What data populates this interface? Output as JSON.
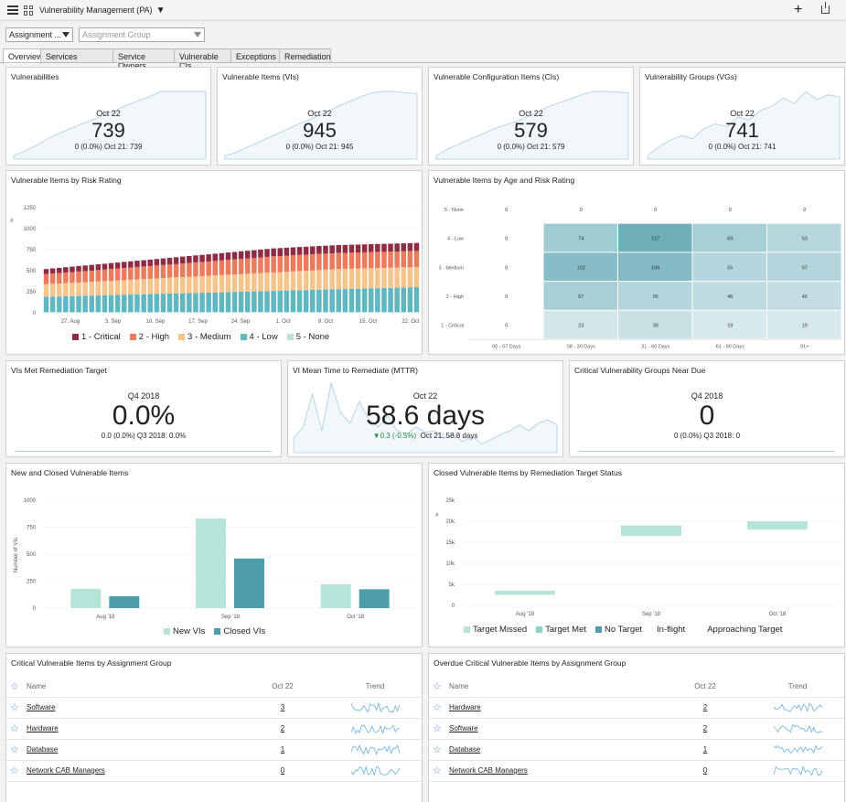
{
  "header": {
    "title": "Vulnerability Management (PA)"
  },
  "filters": {
    "assignment": "Assignment ...",
    "group_placeholder": "Assignment Group"
  },
  "tabs": [
    "Overview",
    "Services",
    "Service Owners",
    "Vulnerable CIs",
    "Exceptions",
    "Remediation"
  ],
  "kpis": [
    {
      "title": "Vulnerabilities",
      "date": "Oct 22",
      "value": "739",
      "sub": "0 (0.0%)  Oct 21: 739",
      "trend": [
        0.05,
        0.12,
        0.2,
        0.3,
        0.38,
        0.45,
        0.52,
        0.58,
        0.65,
        0.72,
        0.8,
        0.86,
        0.92,
        1,
        1,
        1,
        1,
        1
      ]
    },
    {
      "title": "Vulnerable Items (VIs)",
      "date": "Oct 22",
      "value": "945",
      "sub": "0 (0.0%)  Oct 21: 945",
      "trend": [
        0.05,
        0.1,
        0.18,
        0.25,
        0.33,
        0.4,
        0.48,
        0.55,
        0.62,
        0.7,
        0.78,
        0.85,
        0.92,
        0.98,
        1,
        1,
        0.98,
        0.97
      ]
    },
    {
      "title": "Vulnerable Configuration Items (CIs)",
      "date": "Oct 22",
      "value": "579",
      "sub": "0 (0.0%)  Oct 21: 579",
      "trend": [
        0.05,
        0.15,
        0.22,
        0.3,
        0.36,
        0.44,
        0.5,
        0.55,
        0.62,
        0.7,
        0.78,
        0.84,
        0.9,
        0.96,
        1,
        1,
        0.99,
        0.98
      ]
    },
    {
      "title": "Vulnerability Groups (VGs)",
      "date": "Oct 22",
      "value": "741",
      "sub": "0 (0.0%)  Oct 21: 741",
      "trend": [
        0.05,
        0.18,
        0.28,
        0.35,
        0.3,
        0.45,
        0.52,
        0.48,
        0.62,
        0.58,
        0.72,
        0.78,
        0.9,
        0.82,
        1,
        0.88,
        0.95,
        0.92
      ]
    }
  ],
  "risk_chart": {
    "title": "Vulnerable Items by Risk Rating",
    "yticks": [
      "1250",
      "1000",
      "750",
      "500",
      "250",
      "0"
    ],
    "xticks": [
      "27. Aug",
      "3. Sep",
      "10. Sep",
      "17. Sep",
      "24. Sep",
      "1. Oct",
      "8. Oct",
      "15. Oct",
      "22. Oct"
    ],
    "legend": [
      "1 - Critical",
      "2 - High",
      "3 - Medium",
      "4 - Low",
      "5 - None"
    ],
    "colors": {
      "critical": "#8e2b45",
      "high": "#ec7b5e",
      "medium": "#f6c48d",
      "low": "#5fb7c2",
      "none": "#b8e3de"
    }
  },
  "chart_data": [
    {
      "type": "bar",
      "title": "Vulnerable Items by Risk Rating",
      "ylim": [
        0,
        1250
      ],
      "series": [
        {
          "name": "1 - Critical",
          "values": [
            60,
            61,
            62,
            63,
            64,
            65,
            66,
            67,
            68,
            69,
            70,
            71,
            72,
            73,
            74,
            75,
            76,
            77,
            78,
            79,
            80,
            81,
            82,
            83,
            84,
            85,
            86,
            87,
            88,
            89,
            90,
            91,
            92,
            93,
            94,
            95,
            95,
            95,
            95,
            95,
            95,
            95,
            95,
            95,
            95,
            95,
            95,
            95,
            95,
            95,
            95,
            95,
            95,
            95,
            95,
            95,
            95,
            95
          ]
        },
        {
          "name": "2 - High",
          "values": [
            120,
            122,
            124,
            126,
            128,
            130,
            132,
            134,
            136,
            138,
            140,
            142,
            144,
            146,
            148,
            150,
            152,
            154,
            156,
            158,
            160,
            162,
            164,
            166,
            168,
            170,
            172,
            174,
            176,
            178,
            180,
            182,
            184,
            186,
            188,
            190,
            190,
            190,
            190,
            190,
            190,
            190,
            190,
            190,
            190,
            190,
            190,
            190,
            190,
            190,
            190,
            190,
            190,
            190,
            190,
            190,
            190,
            190
          ]
        },
        {
          "name": "3 - Medium",
          "values": [
            150,
            152,
            154,
            156,
            158,
            160,
            162,
            164,
            166,
            168,
            170,
            172,
            174,
            176,
            178,
            180,
            182,
            184,
            186,
            188,
            190,
            192,
            194,
            196,
            198,
            200,
            202,
            204,
            206,
            208,
            210,
            212,
            214,
            216,
            218,
            220,
            222,
            224,
            226,
            228,
            230,
            232,
            234,
            236,
            238,
            240,
            240,
            240,
            240,
            240,
            240,
            240,
            240,
            240,
            240,
            240,
            240,
            240
          ]
        },
        {
          "name": "4 - Low",
          "values": [
            180,
            182,
            184,
            186,
            188,
            190,
            192,
            194,
            196,
            198,
            200,
            202,
            204,
            206,
            208,
            210,
            212,
            214,
            216,
            218,
            220,
            222,
            224,
            226,
            228,
            230,
            232,
            234,
            236,
            238,
            240,
            242,
            244,
            246,
            248,
            250,
            252,
            254,
            256,
            258,
            260,
            262,
            264,
            266,
            268,
            270,
            272,
            274,
            276,
            278,
            280,
            282,
            284,
            286,
            288,
            290,
            292,
            294
          ]
        },
        {
          "name": "5 - None",
          "values": [
            10,
            10,
            10,
            10,
            10,
            10,
            10,
            10,
            10,
            10,
            10,
            10,
            10,
            10,
            10,
            10,
            10,
            10,
            10,
            10,
            10,
            10,
            10,
            10,
            10,
            10,
            10,
            10,
            10,
            10,
            10,
            10,
            10,
            10,
            10,
            10,
            10,
            10,
            10,
            10,
            10,
            10,
            10,
            10,
            10,
            10,
            10,
            10,
            10,
            10,
            10,
            10,
            10,
            10,
            10,
            10,
            10,
            10
          ]
        }
      ]
    },
    {
      "type": "heatmap",
      "title": "Vulnerable Items by Age and Risk Rating",
      "rows": [
        "5 - None",
        "4 - Low",
        "3 - Medium",
        "2 - High",
        "1 - Critical"
      ],
      "columns": [
        "00 - 07 Days",
        "08 - 30 Days",
        "31 - 60 Days",
        "61 - 90 Days",
        "91+"
      ],
      "values": [
        [
          0,
          0,
          0,
          0,
          0
        ],
        [
          0,
          74,
          127,
          69,
          53
        ],
        [
          0,
          102,
          106,
          55,
          57
        ],
        [
          0,
          67,
          55,
          46,
          40
        ],
        [
          0,
          23,
          33,
          19,
          19
        ]
      ]
    },
    {
      "type": "bar",
      "title": "New and Closed Vulnerable Items",
      "ylabel": "Number of VIs",
      "categories": [
        "Aug '18",
        "Sep '18",
        "Oct '18"
      ],
      "ylim": [
        0,
        1000
      ],
      "yticks": [
        "1000",
        "750",
        "500",
        "250",
        "0"
      ],
      "series": [
        {
          "name": "New VIs",
          "values": [
            180,
            830,
            220
          ],
          "color": "#b6e4d8"
        },
        {
          "name": "Closed VIs",
          "values": [
            110,
            460,
            175
          ],
          "color": "#4e9dab"
        }
      ]
    },
    {
      "type": "bar",
      "title": "Closed Vulnerable Items by Remediation Target Status",
      "categories": [
        "Aug '18",
        "Sep '18",
        "Oct '18"
      ],
      "ylim": [
        0,
        25000
      ],
      "yticks": [
        "25k",
        "20k",
        "15k",
        "10k",
        "5k",
        "0"
      ],
      "floating_ranges": [
        [
          2500,
          3500
        ],
        [
          16500,
          19000
        ],
        [
          18000,
          20000
        ]
      ],
      "legend": [
        {
          "name": "Target Missed",
          "color": "#b6e4d8"
        },
        {
          "name": "Target Met",
          "color": "#8ed0c6"
        },
        {
          "name": "No Target",
          "color": "#4e9dab"
        },
        {
          "name": "In-flight",
          "color": ""
        },
        {
          "name": "Approaching Target",
          "color": ""
        }
      ]
    }
  ],
  "mid_kpis": [
    {
      "title": "VIs Met Remediation Target",
      "date": "Q4 2018",
      "value": "0.0%",
      "sub": "0.0 (0.0%)  Q3 2018: 0.0%"
    },
    {
      "title": "VI Mean Time to Remediate (MTTR)",
      "date": "Oct 22",
      "value": "58.6 days",
      "sub_delta": "▼0.3 (-0.5%)",
      "sub": "Oct 21: 58.8 days"
    },
    {
      "title": "Critical Vulnerability Groups Near Due",
      "date": "Q4 2018",
      "value": "0",
      "sub": "0 (0.0%)  Q3 2018: 0"
    }
  ],
  "lists": [
    {
      "title": "Critical Vulnerable Items by Assignment Group",
      "cols": [
        "Name",
        "Oct 22",
        "Trend"
      ],
      "rows": [
        {
          "name": "Software",
          "count": "3"
        },
        {
          "name": "Hardware",
          "count": "2"
        },
        {
          "name": "Database",
          "count": "1"
        },
        {
          "name": "Network CAB Managers",
          "count": "0"
        }
      ]
    },
    {
      "title": "Overdue Critical Vulnerable Items by Assignment Group",
      "cols": [
        "Name",
        "Oct 22",
        "Trend"
      ],
      "rows": [
        {
          "name": "Hardware",
          "count": "2"
        },
        {
          "name": "Software",
          "count": "2"
        },
        {
          "name": "Database",
          "count": "1"
        },
        {
          "name": "Network CAB Managers",
          "count": "0"
        }
      ]
    }
  ]
}
